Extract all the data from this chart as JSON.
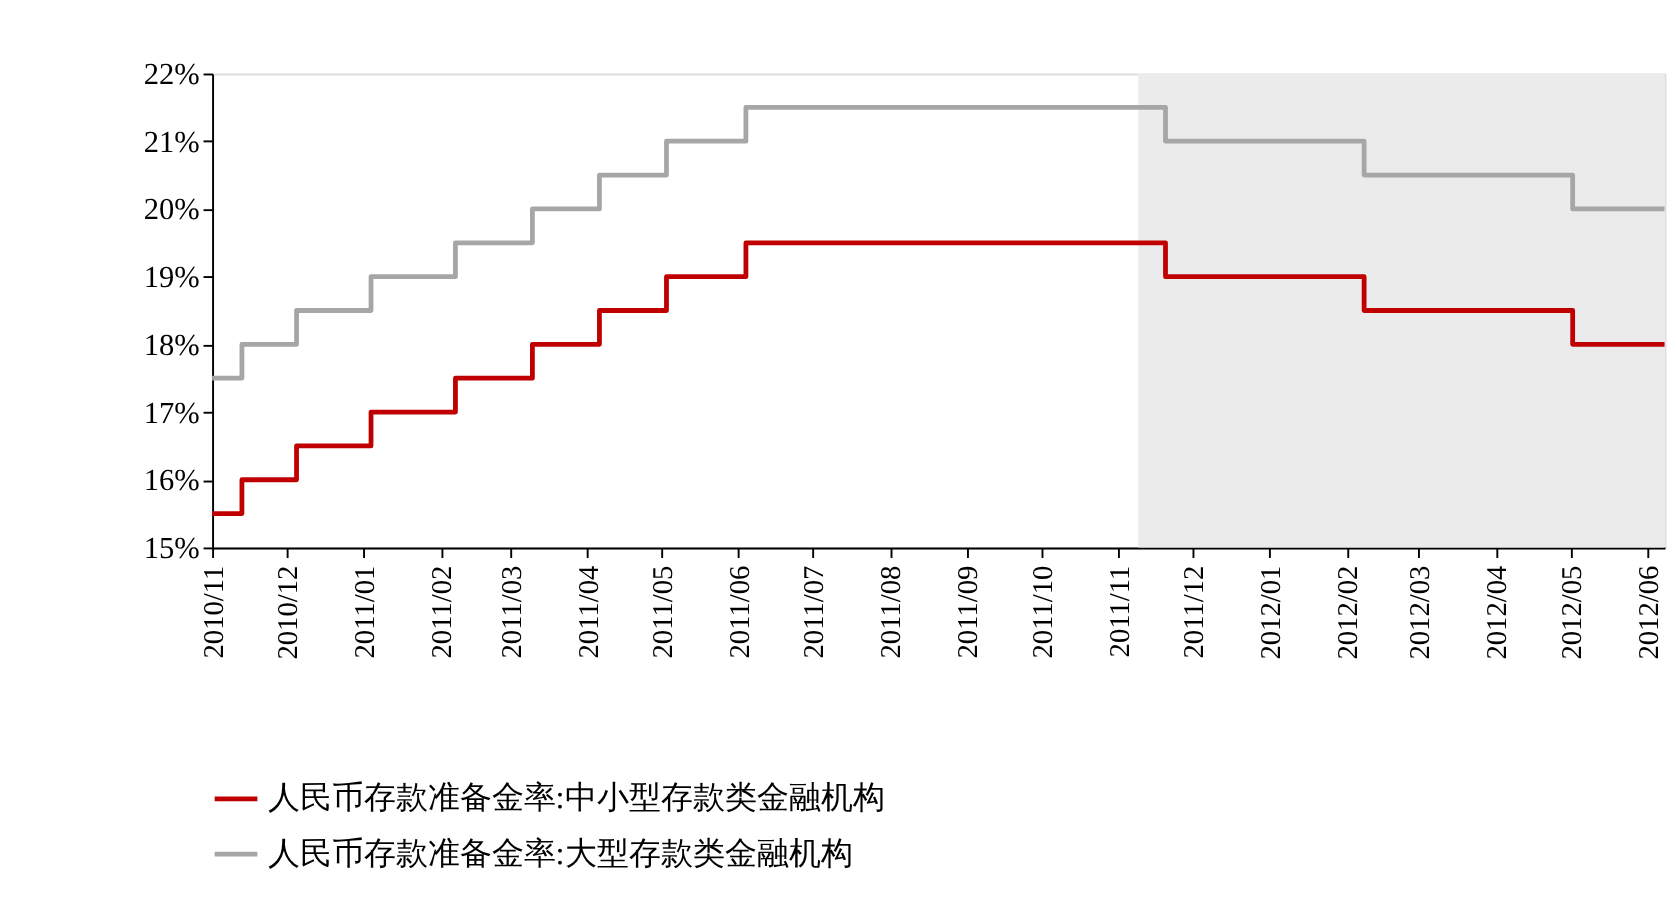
{
  "chart_data": {
    "type": "step",
    "xlim": [
      "2010-11-01",
      "2012-06-08"
    ],
    "xticks": [
      {
        "value": "2010-11",
        "label": "2010/11"
      },
      {
        "value": "2010-12",
        "label": "2010/12"
      },
      {
        "value": "2011-01",
        "label": "2011/01"
      },
      {
        "value": "2011-02",
        "label": "2011/02"
      },
      {
        "value": "2011-03",
        "label": "2011/03"
      },
      {
        "value": "2011-04",
        "label": "2011/04"
      },
      {
        "value": "2011-05",
        "label": "2011/05"
      },
      {
        "value": "2011-06",
        "label": "2011/06"
      },
      {
        "value": "2011-07",
        "label": "2011/07"
      },
      {
        "value": "2011-08",
        "label": "2011/08"
      },
      {
        "value": "2011-09",
        "label": "2011/09"
      },
      {
        "value": "2011-10",
        "label": "2011/10"
      },
      {
        "value": "2011-11",
        "label": "2011/11"
      },
      {
        "value": "2011-12",
        "label": "2011/12"
      },
      {
        "value": "2012-01",
        "label": "2012/01"
      },
      {
        "value": "2012-02",
        "label": "2012/02"
      },
      {
        "value": "2012-03",
        "label": "2012/03"
      },
      {
        "value": "2012-04",
        "label": "2012/04"
      },
      {
        "value": "2012-05",
        "label": "2012/05"
      },
      {
        "value": "2012-06",
        "label": "2012/06"
      }
    ],
    "ylim": [
      15,
      22
    ],
    "yticks": [
      {
        "value": 15,
        "label": "15%"
      },
      {
        "value": 16,
        "label": "16%"
      },
      {
        "value": 17,
        "label": "17%"
      },
      {
        "value": 18,
        "label": "18%"
      },
      {
        "value": 19,
        "label": "19%"
      },
      {
        "value": 20,
        "label": "20%"
      },
      {
        "value": 21,
        "label": "21%"
      },
      {
        "value": 22,
        "label": "22%"
      }
    ],
    "x": [
      "2010-11-01",
      "2010-11-13",
      "2010-12-05",
      "2011-01-04",
      "2011-02-07",
      "2011-03-10",
      "2011-04-06",
      "2011-05-03",
      "2011-06-04",
      "2011-11-20",
      "2012-02-08",
      "2012-05-02",
      "2012-06-08"
    ],
    "series": [
      {
        "name": "人民币存款准备金率:中小型存款类金融机构",
        "color": "#c00000",
        "values": [
          15.5,
          16,
          16.5,
          17,
          17.5,
          18,
          18.5,
          19,
          19.5,
          19,
          18.5,
          18,
          18
        ]
      },
      {
        "name": "人民币存款准备金率:大型存款类金融机构",
        "color": "#a6a6a6",
        "values": [
          17.5,
          18,
          18.5,
          19,
          19.5,
          20,
          20.5,
          21,
          21.5,
          21,
          20.5,
          20,
          20
        ]
      }
    ],
    "bands": [
      {
        "axis": "x",
        "from": "2011-11-09",
        "to": "2012-06-08",
        "color": "#ebebeb"
      }
    ],
    "legend": "bottom",
    "grid": false,
    "line_style": "solid",
    "marker": "none"
  }
}
